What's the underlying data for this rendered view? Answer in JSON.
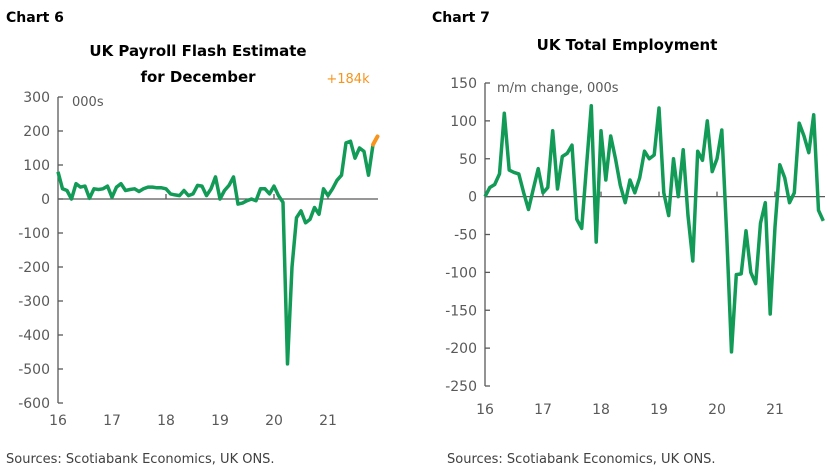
{
  "colors": {
    "series": "#129a57",
    "highlight": "#f7941d",
    "axis": "#595959",
    "text": "#595959",
    "title": "#000000"
  },
  "chart_data": [
    {
      "type": "line",
      "label": "Chart 6",
      "title": [
        "UK Payroll Flash Estimate",
        "for December"
      ],
      "unit_label": "000s",
      "annotation": "+184k",
      "source": "Sources: Scotiabank Economics, UK ONS.",
      "ylim": [
        -600,
        300
      ],
      "yticks": [
        300,
        200,
        100,
        0,
        -100,
        -200,
        -300,
        -400,
        -500,
        -600
      ],
      "ytick_labels": [
        "300",
        "200",
        "100",
        "0",
        "-100",
        "-200",
        "-300",
        "-400",
        "-500",
        "-600"
      ],
      "xticks": [
        "16",
        "17",
        "18",
        "19",
        "20",
        "21"
      ],
      "x_start": "2016-01",
      "frequency": "monthly",
      "grid": false,
      "values": [
        80,
        30,
        25,
        0,
        45,
        35,
        38,
        2,
        30,
        28,
        30,
        38,
        5,
        35,
        45,
        25,
        28,
        30,
        22,
        30,
        35,
        35,
        33,
        33,
        30,
        15,
        12,
        10,
        25,
        10,
        15,
        40,
        38,
        10,
        30,
        65,
        0,
        25,
        40,
        65,
        -15,
        -12,
        -5,
        0,
        -5,
        30,
        30,
        15,
        38,
        10,
        -10,
        -485,
        -200,
        -55,
        -35,
        -70,
        -60,
        -25,
        -45,
        30,
        10,
        30,
        55,
        70,
        165,
        170,
        120,
        150,
        140,
        70,
        160,
        184
      ],
      "highlight_last_segment": true
    },
    {
      "type": "line",
      "label": "Chart 7",
      "title": [
        "UK Total Employment"
      ],
      "unit_label": "m/m change, 000s",
      "source": "Sources: Scotiabank Economics, UK ONS.",
      "ylim": [
        -250,
        150
      ],
      "yticks": [
        150,
        100,
        50,
        0,
        -50,
        -100,
        -150,
        -200,
        -250
      ],
      "ytick_labels": [
        "150",
        "100",
        "50",
        "0",
        "-50",
        "-100",
        "-150",
        "-200",
        "-250"
      ],
      "xticks": [
        "16",
        "17",
        "18",
        "19",
        "20",
        "21"
      ],
      "x_start": "2016-01",
      "frequency": "monthly",
      "grid": false,
      "values": [
        0,
        12,
        16,
        30,
        110,
        35,
        32,
        30,
        5,
        -17,
        10,
        37,
        5,
        12,
        87,
        10,
        53,
        57,
        68,
        -30,
        -42,
        40,
        120,
        -60,
        87,
        22,
        80,
        50,
        15,
        -8,
        22,
        5,
        25,
        60,
        50,
        55,
        117,
        5,
        -25,
        50,
        0,
        62,
        -25,
        -85,
        60,
        48,
        100,
        33,
        50,
        88,
        -50,
        -205,
        -103,
        -102,
        -45,
        -100,
        -115,
        -35,
        -8,
        -155,
        -40,
        42,
        25,
        -8,
        5,
        97,
        80,
        58,
        108,
        -18,
        -32
      ]
    }
  ]
}
